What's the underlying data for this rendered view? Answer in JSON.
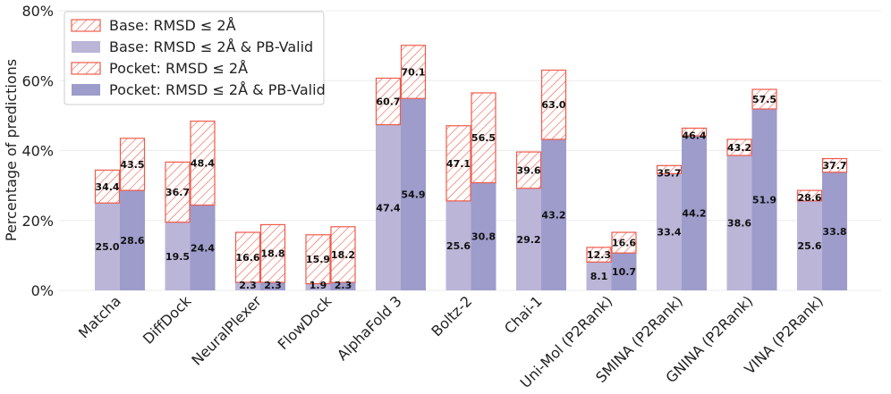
{
  "chart_data": {
    "type": "bar",
    "ylabel": "Percentage of predictions",
    "ylim": [
      0,
      80
    ],
    "yticks": [
      0,
      20,
      40,
      60,
      80
    ],
    "ytick_labels": [
      "0%",
      "20%",
      "40%",
      "60%",
      "80%"
    ],
    "grid": true,
    "legend_position": "top-left",
    "categories": [
      "Matcha",
      "DiffDock",
      "NeuralPlexer",
      "FlowDock",
      "AlphaFold 3",
      "Boltz-2",
      "Chai-1",
      "Uni-Mol (P2Rank)",
      "SMINA (P2Rank)",
      "GNINA (P2Rank)",
      "VINA (P2Rank)"
    ],
    "series": [
      {
        "name": "Base: RMSD ≤ 2Å",
        "style": "hatched",
        "group": "base",
        "values": [
          34.4,
          36.7,
          16.6,
          15.9,
          60.7,
          47.1,
          39.6,
          12.3,
          35.7,
          43.2,
          28.6
        ]
      },
      {
        "name": "Base: RMSD ≤ 2Å & PB-Valid",
        "style": "solid",
        "group": "base",
        "values": [
          25.0,
          19.5,
          2.3,
          1.9,
          47.4,
          25.6,
          29.2,
          8.1,
          33.4,
          38.6,
          25.6
        ]
      },
      {
        "name": "Pocket: RMSD ≤ 2Å",
        "style": "hatched",
        "group": "pocket",
        "values": [
          43.5,
          48.4,
          18.8,
          18.2,
          70.1,
          56.5,
          63.0,
          16.6,
          46.4,
          57.5,
          37.7
        ]
      },
      {
        "name": "Pocket: RMSD ≤ 2Å & PB-Valid",
        "style": "solid",
        "group": "pocket",
        "values": [
          28.6,
          24.4,
          2.3,
          2.3,
          54.9,
          30.8,
          43.2,
          10.7,
          44.2,
          51.9,
          33.8
        ]
      }
    ],
    "colors": {
      "base_fill": "#bbb5d8",
      "pocket_fill": "#9e9ccb",
      "hatch": "#f05a4a"
    }
  }
}
